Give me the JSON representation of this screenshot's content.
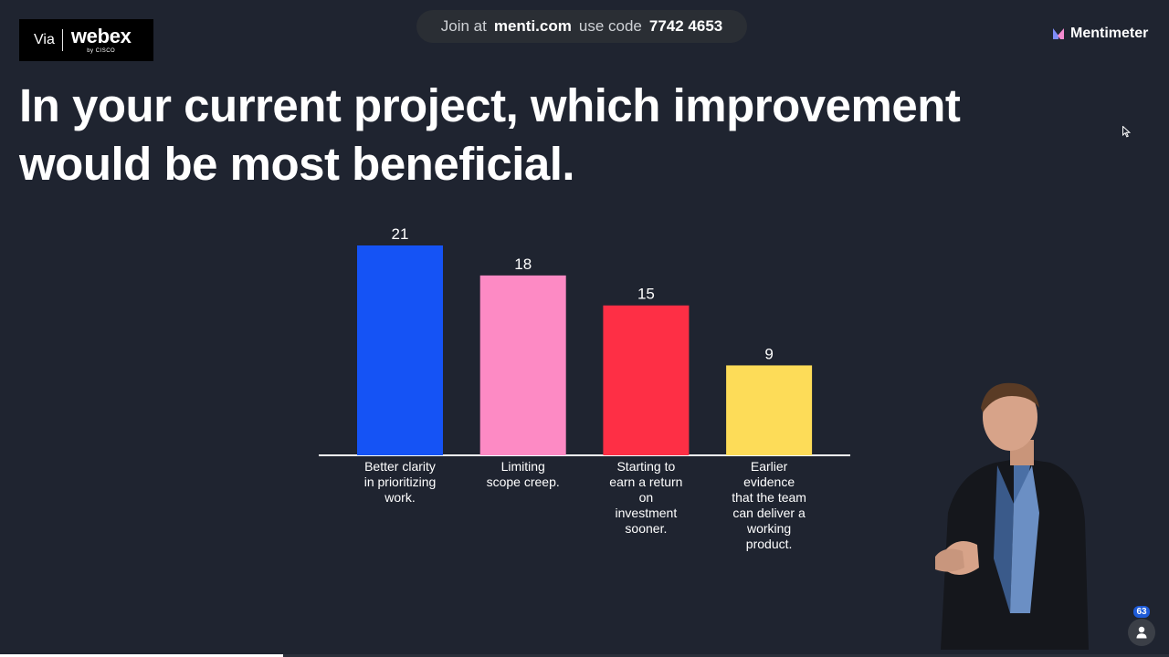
{
  "webex": {
    "via": "Via",
    "brand": "webex",
    "by": "by CISCO"
  },
  "join": {
    "prefix": "Join at",
    "url": "menti.com",
    "mid": "use code",
    "code": "7742 4653"
  },
  "menti": {
    "brand": "Mentimeter"
  },
  "title": {
    "line1": "In your current project, which improvement",
    "line2": "would be most beneficial."
  },
  "participants": {
    "count": "63"
  },
  "progress": {
    "fraction": 0.242
  },
  "colors": {
    "background": "#1f2430",
    "bar1": "#1553f5",
    "bar2": "#fd8ac4",
    "bar3": "#fe2f45",
    "bar4": "#fddc58"
  },
  "chart_data": {
    "type": "bar",
    "categories": [
      [
        "Better clarity",
        "in prioritizing",
        "work."
      ],
      [
        "Limiting",
        "scope creep."
      ],
      [
        "Starting to",
        "earn a return",
        "on",
        "investment",
        "sooner."
      ],
      [
        "Earlier",
        "evidence",
        "that the team",
        "can deliver a",
        "working",
        "product."
      ]
    ],
    "values": [
      21,
      18,
      15,
      9
    ],
    "bar_colors": [
      "#1553f5",
      "#fd8ac4",
      "#fe2f45",
      "#fddc58"
    ],
    "ylim": [
      0,
      21
    ],
    "grid": false,
    "legend": "none"
  }
}
